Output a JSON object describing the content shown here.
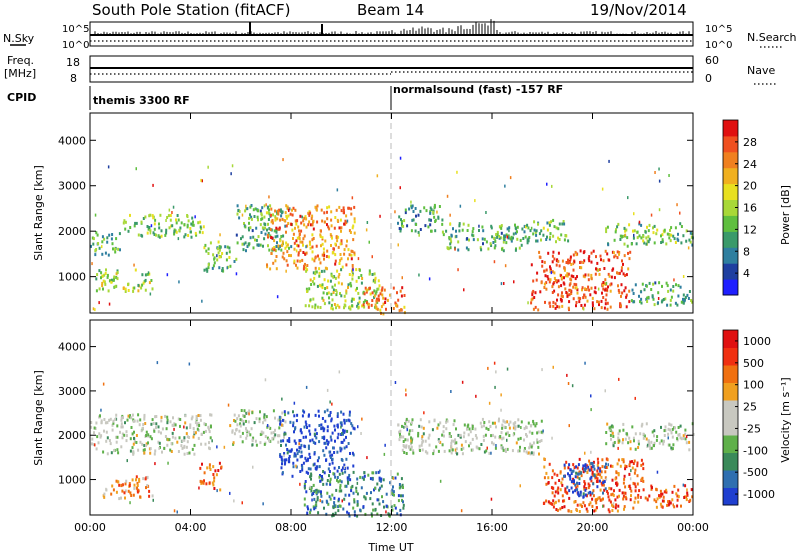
{
  "header": {
    "title": "South Pole Station (fitACF)",
    "beam": "Beam 14",
    "date": "19/Nov/2014"
  },
  "top_panels": {
    "nsky_label": "N.Sky",
    "nsky_ticks": [
      "10^5",
      "10^0"
    ],
    "nsearch_label": "N.Search",
    "nsearch_ticks": [
      "10^5",
      "10^0"
    ],
    "freq_label_1": "Freq.",
    "freq_label_2": "[MHz]",
    "freq_ticks": [
      "18",
      "8"
    ],
    "nave_label": "Nave",
    "nave_ticks": [
      "60",
      "0"
    ],
    "cpid_label": "CPID",
    "cpid_segments": [
      {
        "label": "themis 3300 RF",
        "start_hour": 0
      },
      {
        "label": "normalsound (fast) -157 RF",
        "start_hour": 12
      }
    ]
  },
  "chart_data": [
    {
      "type": "heatmap",
      "name": "power",
      "ylabel": "Slant Range [km]",
      "yticks": [
        1000,
        2000,
        3000,
        4000
      ],
      "ylim": [
        200,
        4600
      ],
      "x_ticks": [
        "00:00",
        "04:00",
        "08:00",
        "12:00",
        "16:00",
        "20:00",
        "00:00"
      ],
      "xlim": [
        0,
        24
      ],
      "colorbar": {
        "label": "Power [dB]",
        "ticks": [
          "4",
          "8",
          "12",
          "16",
          "20",
          "24",
          "28"
        ],
        "colors": [
          "#1f1fff",
          "#1f3fa0",
          "#2f7f9f",
          "#3a9a6a",
          "#5fbf3f",
          "#a8d838",
          "#e8e020",
          "#f0b020",
          "#f08020",
          "#f05020",
          "#e01010"
        ]
      },
      "bands": [
        {
          "x": [
            0,
            1.2
          ],
          "y": [
            1500,
            2000
          ],
          "level": 0.35
        },
        {
          "x": [
            1.2,
            4.5
          ],
          "y": [
            1900,
            2400
          ],
          "level": 0.45
        },
        {
          "x": [
            0.2,
            2.5
          ],
          "y": [
            700,
            1200
          ],
          "level": 0.5
        },
        {
          "x": [
            4.5,
            5.8
          ],
          "y": [
            1150,
            1800
          ],
          "level": 0.4
        },
        {
          "x": [
            5.8,
            8.0
          ],
          "y": [
            1600,
            2600
          ],
          "level": 0.35
        },
        {
          "x": [
            7.0,
            10.5
          ],
          "y": [
            1200,
            2600
          ],
          "level": 0.75
        },
        {
          "x": [
            8.5,
            11.5
          ],
          "y": [
            300,
            1200
          ],
          "level": 0.5
        },
        {
          "x": [
            10.8,
            12.5
          ],
          "y": [
            200,
            800
          ],
          "level": 0.8
        },
        {
          "x": [
            12.2,
            14.0
          ],
          "y": [
            2000,
            2600
          ],
          "level": 0.3
        },
        {
          "x": [
            14.0,
            17.5
          ],
          "y": [
            1600,
            2200
          ],
          "level": 0.35
        },
        {
          "x": [
            17.2,
            19.0
          ],
          "y": [
            1800,
            2300
          ],
          "level": 0.4
        },
        {
          "x": [
            17.5,
            21.5
          ],
          "y": [
            300,
            1600
          ],
          "level": 0.85
        },
        {
          "x": [
            20.5,
            24
          ],
          "y": [
            1700,
            2200
          ],
          "level": 0.4
        },
        {
          "x": [
            21.5,
            24
          ],
          "y": [
            400,
            900
          ],
          "level": 0.35
        }
      ]
    },
    {
      "type": "heatmap",
      "name": "velocity",
      "ylabel": "Slant Range [km]",
      "yticks": [
        1000,
        2000,
        3000,
        4000
      ],
      "ylim": [
        200,
        4600
      ],
      "x_ticks": [
        "00:00",
        "04:00",
        "08:00",
        "12:00",
        "16:00",
        "20:00",
        "00:00"
      ],
      "xlim": [
        0,
        24
      ],
      "xlabel": "Time UT",
      "colorbar": {
        "label": "Velocity [m s⁻¹]",
        "ticks": [
          "1000",
          "500",
          "100",
          "25",
          "-25",
          "-100",
          "-500",
          "-1000"
        ],
        "colors": [
          "#1f3fd0",
          "#2f6fb0",
          "#3a8a5a",
          "#5fb04a",
          "#c8c8c0",
          "#c8c8c0",
          "#f0a020",
          "#f07010",
          "#f03010",
          "#e01010"
        ]
      },
      "bands": [
        {
          "x": [
            0,
            4.8
          ],
          "y": [
            1600,
            2500
          ],
          "level": 0.45
        },
        {
          "x": [
            0.5,
            2.5
          ],
          "y": [
            600,
            1100
          ],
          "level": 0.7
        },
        {
          "x": [
            4.3,
            5.2
          ],
          "y": [
            800,
            1400
          ],
          "level": 0.8
        },
        {
          "x": [
            5.5,
            7.8
          ],
          "y": [
            1800,
            2600
          ],
          "level": 0.45
        },
        {
          "x": [
            7.5,
            10.5
          ],
          "y": [
            1100,
            2600
          ],
          "level": 0.05
        },
        {
          "x": [
            8.5,
            12.5
          ],
          "y": [
            200,
            1200
          ],
          "level": 0.22
        },
        {
          "x": [
            12.2,
            18
          ],
          "y": [
            1600,
            2400
          ],
          "level": 0.45
        },
        {
          "x": [
            18,
            22
          ],
          "y": [
            300,
            1500
          ],
          "level": 0.8
        },
        {
          "x": [
            18.8,
            20.5
          ],
          "y": [
            600,
            1400
          ],
          "level": 0.05
        },
        {
          "x": [
            20.5,
            24
          ],
          "y": [
            1700,
            2300
          ],
          "level": 0.45
        },
        {
          "x": [
            22,
            24
          ],
          "y": [
            400,
            900
          ],
          "level": 0.8
        }
      ]
    }
  ]
}
